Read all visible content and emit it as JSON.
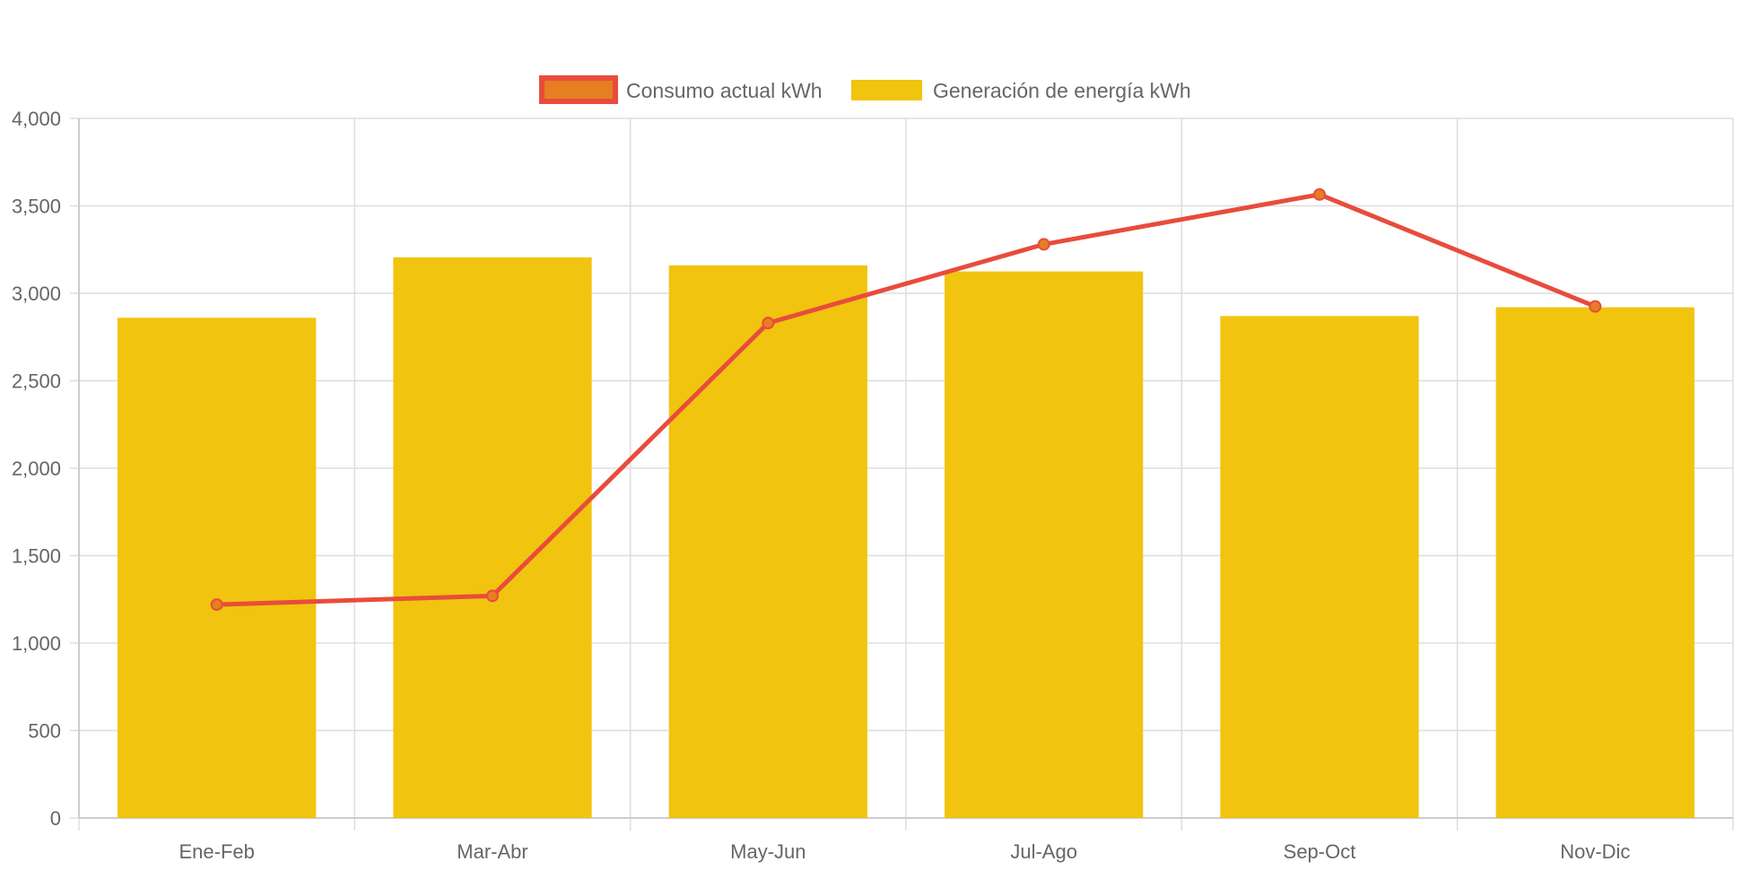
{
  "chart_data": {
    "type": "bar",
    "categories": [
      "Ene-Feb",
      "Mar-Abr",
      "May-Jun",
      "Jul-Ago",
      "Sep-Oct",
      "Nov-Dic"
    ],
    "series": [
      {
        "name": "Consumo actual kWh",
        "type": "line",
        "values": [
          1220,
          1270,
          2830,
          3280,
          3565,
          2925
        ],
        "line_color": "#e84c3d",
        "point_color": "#e67e22"
      },
      {
        "name": "Generación de energía kWh",
        "type": "bar",
        "values": [
          2860,
          3205,
          3160,
          3125,
          2870,
          2920
        ],
        "color": "#f1c40f"
      }
    ],
    "yticks": [
      "0",
      "500",
      "1,000",
      "1,500",
      "2,000",
      "2,500",
      "3,000",
      "3,500",
      "4,000"
    ],
    "ylim": [
      0,
      4000
    ],
    "ystep": 500,
    "grid": true,
    "legend_position": "top-center",
    "title": "",
    "xlabel": "",
    "ylabel": ""
  },
  "colors": {
    "grid": "#dddddd",
    "axis": "#cccccc",
    "text": "#666666"
  }
}
